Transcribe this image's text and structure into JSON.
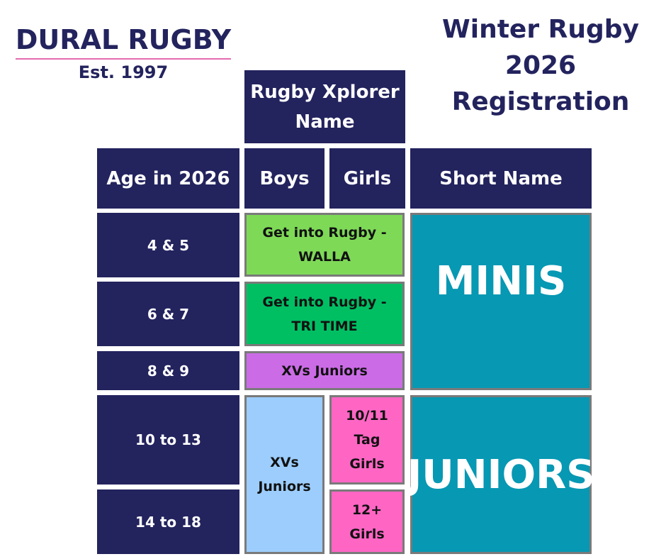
{
  "header": {
    "club": "DURAL RUGBY",
    "est": "Est. 1997",
    "title_lines": [
      "Winter Rugby",
      "2026",
      "Registration"
    ]
  },
  "table": {
    "xplorer_header": "Rugby Xplorer Name",
    "headers": [
      "Age in 2026",
      "Boys",
      "Girls",
      "Short Name"
    ],
    "ages": [
      "4 & 5",
      "6 & 7",
      "8 & 9",
      "10 to 13",
      "14 to 18"
    ],
    "programs": [
      "Get into Rugby - WALLA",
      "Get into Rugby - TRI TIME",
      "XVs Juniors",
      "XVs Juniors",
      "10/11 Tag Girls",
      "12+ Girls"
    ],
    "short_names": [
      "MINIS",
      "JUNIORS"
    ]
  }
}
